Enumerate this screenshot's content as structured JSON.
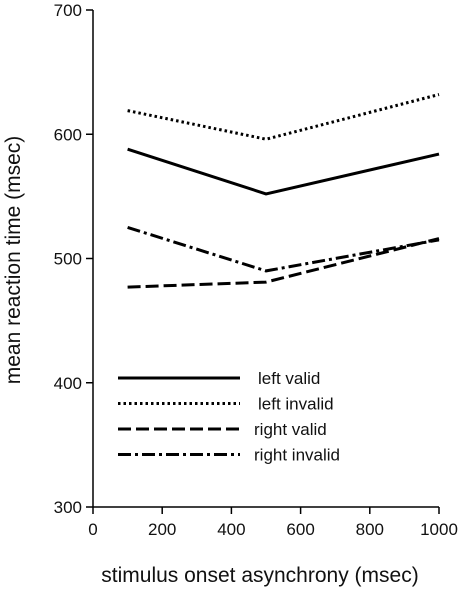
{
  "chart_data": {
    "type": "line",
    "xlabel": "stimulus onset asynchrony (msec)",
    "ylabel": "mean reaction time (msec)",
    "xlim": [
      0,
      1000
    ],
    "ylim": [
      300,
      700
    ],
    "xticks": [
      "0",
      "200",
      "400",
      "600",
      "800",
      "1000"
    ],
    "yticks": [
      "300",
      "400",
      "500",
      "600",
      "700"
    ],
    "x": [
      100,
      500,
      1000
    ],
    "grid": false,
    "legend_position": "bottom-center",
    "series": [
      {
        "name": "left valid",
        "values": [
          588,
          552,
          584
        ],
        "style": "solid"
      },
      {
        "name": "left invalid",
        "values": [
          619,
          596,
          632
        ],
        "style": "dotted"
      },
      {
        "name": "right valid",
        "values": [
          477,
          481,
          516
        ],
        "style": "dashed"
      },
      {
        "name": "right invalid",
        "values": [
          525,
          490,
          515
        ],
        "style": "dashdot"
      }
    ],
    "line_color": "#000000"
  }
}
